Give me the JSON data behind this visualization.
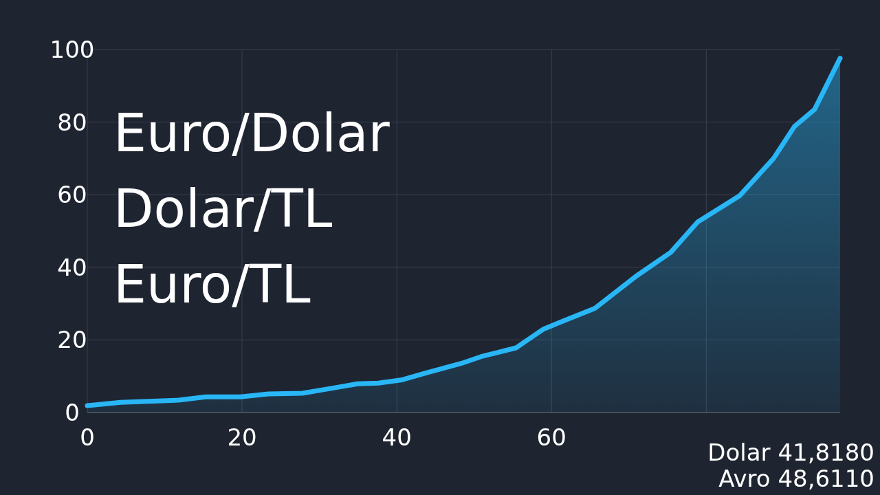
{
  "chart_data": {
    "type": "area",
    "color": "#29b6f6",
    "x": [
      0,
      4.3,
      11.8,
      15.3,
      19.8,
      23.4,
      27.8,
      31.4,
      34.9,
      37.6,
      40.7,
      43.8,
      48.3,
      50.9,
      55.4,
      58.9,
      61.6,
      65.6,
      70.9,
      75.4,
      78.9,
      84.3,
      88.7,
      91.4,
      94,
      97.3
    ],
    "values": [
      1.9,
      2.8,
      3.4,
      4.3,
      4.3,
      5.1,
      5.3,
      6.6,
      7.9,
      8.1,
      9,
      10.9,
      13.5,
      15.4,
      17.8,
      22.9,
      25.3,
      28.7,
      37.5,
      44.1,
      52.5,
      59.7,
      70,
      78.8,
      83.5,
      97.6
    ],
    "xlim": [
      0,
      97.3
    ],
    "ylim": [
      0,
      100
    ],
    "xticks": [
      0,
      20,
      40,
      60,
      {
        "value": 80,
        "label": null
      }
    ],
    "yticks": [
      0,
      20,
      40,
      60,
      80,
      100
    ],
    "grid": true,
    "annotations": [
      "Euro/Dolar",
      "Dolar/TL",
      "Euro/TL",
      "Dolar 41,8180",
      "Avro 48,6110"
    ]
  }
}
